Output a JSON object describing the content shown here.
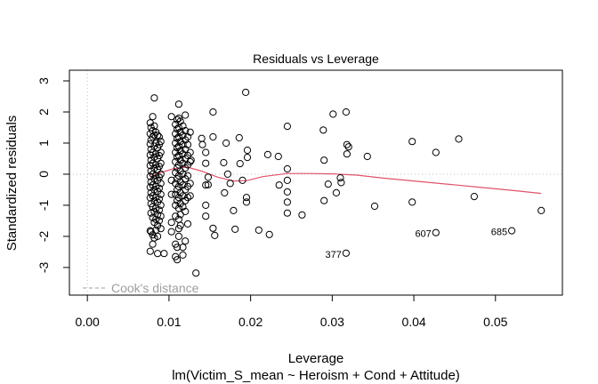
{
  "chart_data": {
    "type": "scatter",
    "title": "Residuals vs Leverage",
    "xlabel": "Leverage",
    "ylabel": "Standardized residuals",
    "subtitle": "lm(Victim_S_mean ~ Heroism + Cond + Attitude)",
    "xlim": [
      -0.0022,
      0.0582
    ],
    "ylim": [
      -3.889,
      3.343
    ],
    "x_ticks": [
      0.0,
      0.01,
      0.02,
      0.03,
      0.04,
      0.05
    ],
    "x_tick_labels": [
      "0.00",
      "0.01",
      "0.02",
      "0.03",
      "0.04",
      "0.05"
    ],
    "y_ticks": [
      3,
      2,
      1,
      0,
      -1,
      -2,
      -3
    ],
    "y_tick_labels": [
      "3",
      "2",
      "1",
      "0",
      "-1",
      "-2",
      "-3"
    ],
    "grid": false,
    "reference_lines": {
      "h": 0,
      "v": 0
    },
    "legend": {
      "text": "Cook's distance",
      "placement": "bottom-left"
    },
    "colors": {
      "smooth": "#DF536B",
      "points": "#000000",
      "reference": "#bebebe",
      "legend": "#9e9e9e"
    },
    "labeled_points": [
      {
        "label": "377",
        "x": 0.0317,
        "y": -2.54
      },
      {
        "label": "607",
        "x": 0.0427,
        "y": -1.88
      },
      {
        "label": "685",
        "x": 0.052,
        "y": -1.82
      }
    ],
    "smooth": {
      "x": [
        0.0077,
        0.009,
        0.0105,
        0.0122,
        0.014,
        0.016,
        0.018,
        0.0195,
        0.0215,
        0.0245,
        0.027,
        0.03,
        0.033,
        0.036,
        0.04,
        0.044,
        0.048,
        0.052,
        0.0556
      ],
      "y": [
        -0.08,
        0.05,
        0.17,
        0.23,
        0.1,
        -0.1,
        -0.22,
        -0.21,
        -0.08,
        0.02,
        0.02,
        0.01,
        -0.03,
        -0.12,
        -0.22,
        -0.32,
        -0.42,
        -0.52,
        -0.62
      ]
    },
    "points": [
      [
        0.0077,
        1.65
      ],
      [
        0.0077,
        1.3
      ],
      [
        0.0077,
        0.97
      ],
      [
        0.0077,
        0.62
      ],
      [
        0.0077,
        0.28
      ],
      [
        0.0077,
        -0.07
      ],
      [
        0.0077,
        -0.42
      ],
      [
        0.0077,
        -0.76
      ],
      [
        0.0077,
        -1.82
      ],
      [
        0.0077,
        -2.48
      ],
      [
        0.0078,
        1.5
      ],
      [
        0.0078,
        1.1
      ],
      [
        0.0078,
        0.8
      ],
      [
        0.0078,
        0.45
      ],
      [
        0.0078,
        0.1
      ],
      [
        0.0078,
        -0.25
      ],
      [
        0.0078,
        -0.6
      ],
      [
        0.0078,
        -0.95
      ],
      [
        0.0078,
        -1.25
      ],
      [
        0.0078,
        -1.85
      ],
      [
        0.008,
        1.85
      ],
      [
        0.008,
        1.4
      ],
      [
        0.008,
        1.2
      ],
      [
        0.008,
        0.7
      ],
      [
        0.008,
        0.35
      ],
      [
        0.008,
        0.0
      ],
      [
        0.008,
        -0.35
      ],
      [
        0.008,
        -0.7
      ],
      [
        0.008,
        -1.05
      ],
      [
        0.008,
        -1.4
      ],
      [
        0.008,
        -1.95
      ],
      [
        0.008,
        -2.25
      ],
      [
        0.0082,
        2.45
      ],
      [
        0.0082,
        1.55
      ],
      [
        0.0082,
        1.25
      ],
      [
        0.0082,
        0.9
      ],
      [
        0.0082,
        0.55
      ],
      [
        0.0082,
        0.2
      ],
      [
        0.0082,
        -0.15
      ],
      [
        0.0082,
        -0.5
      ],
      [
        0.0082,
        -0.85
      ],
      [
        0.0082,
        -1.2
      ],
      [
        0.0082,
        -1.55
      ],
      [
        0.0082,
        -2.05
      ],
      [
        0.0084,
        1.35
      ],
      [
        0.0084,
        1.0
      ],
      [
        0.0084,
        0.65
      ],
      [
        0.0084,
        0.3
      ],
      [
        0.0084,
        -0.05
      ],
      [
        0.0084,
        -0.4
      ],
      [
        0.0084,
        -0.75
      ],
      [
        0.0084,
        -1.1
      ],
      [
        0.0084,
        -1.45
      ],
      [
        0.0084,
        -1.8
      ],
      [
        0.0086,
        1.25
      ],
      [
        0.0086,
        0.85
      ],
      [
        0.0086,
        0.5
      ],
      [
        0.0086,
        0.15
      ],
      [
        0.0086,
        -0.2
      ],
      [
        0.0086,
        -0.55
      ],
      [
        0.0086,
        -0.9
      ],
      [
        0.0086,
        -1.3
      ],
      [
        0.0086,
        -1.65
      ],
      [
        0.0086,
        -2.0
      ],
      [
        0.0086,
        -2.55
      ],
      [
        0.0088,
        1.2
      ],
      [
        0.0088,
        0.95
      ],
      [
        0.0088,
        0.6
      ],
      [
        0.0088,
        0.25
      ],
      [
        0.0088,
        -0.1
      ],
      [
        0.0088,
        -0.45
      ],
      [
        0.0088,
        -0.8
      ],
      [
        0.0088,
        -1.15
      ],
      [
        0.0088,
        -1.5
      ],
      [
        0.009,
        1.05
      ],
      [
        0.009,
        0.7
      ],
      [
        0.009,
        0.35
      ],
      [
        0.009,
        0.0
      ],
      [
        0.009,
        -0.3
      ],
      [
        0.009,
        -0.65
      ],
      [
        0.009,
        -1.0
      ],
      [
        0.009,
        -1.35
      ],
      [
        0.009,
        -1.75
      ],
      [
        0.0094,
        -2.55
      ],
      [
        0.0103,
        1.85
      ],
      [
        0.0103,
        -1.55
      ],
      [
        0.0103,
        -1.85
      ],
      [
        0.0103,
        -0.65
      ],
      [
        0.0103,
        -0.2
      ],
      [
        0.0108,
        1.6
      ],
      [
        0.0108,
        1.3
      ],
      [
        0.0108,
        1.0
      ],
      [
        0.0108,
        0.7
      ],
      [
        0.0108,
        0.4
      ],
      [
        0.0108,
        0.05
      ],
      [
        0.0108,
        -0.3
      ],
      [
        0.0108,
        -0.65
      ],
      [
        0.0108,
        -1.0
      ],
      [
        0.0108,
        -1.35
      ],
      [
        0.0108,
        -2.25
      ],
      [
        0.0108,
        -2.65
      ],
      [
        0.011,
        1.75
      ],
      [
        0.011,
        1.45
      ],
      [
        0.011,
        1.15
      ],
      [
        0.011,
        0.85
      ],
      [
        0.011,
        0.55
      ],
      [
        0.011,
        0.2
      ],
      [
        0.011,
        -0.15
      ],
      [
        0.011,
        -0.5
      ],
      [
        0.011,
        -0.85
      ],
      [
        0.011,
        -2.35
      ],
      [
        0.011,
        -2.75
      ],
      [
        0.0112,
        2.25
      ],
      [
        0.0112,
        1.8
      ],
      [
        0.0112,
        1.5
      ],
      [
        0.0112,
        1.2
      ],
      [
        0.0112,
        0.9
      ],
      [
        0.0112,
        0.6
      ],
      [
        0.0112,
        0.3
      ],
      [
        0.0112,
        -0.05
      ],
      [
        0.0112,
        -0.4
      ],
      [
        0.0112,
        -0.75
      ],
      [
        0.0112,
        -1.1
      ],
      [
        0.0112,
        -1.45
      ],
      [
        0.0112,
        -1.75
      ],
      [
        0.0112,
        -2.0
      ],
      [
        0.0114,
        1.7
      ],
      [
        0.0114,
        1.35
      ],
      [
        0.0114,
        1.05
      ],
      [
        0.0114,
        0.75
      ],
      [
        0.0114,
        0.45
      ],
      [
        0.0114,
        0.1
      ],
      [
        0.0114,
        -0.25
      ],
      [
        0.0114,
        -0.6
      ],
      [
        0.0114,
        -0.95
      ],
      [
        0.0114,
        -1.3
      ],
      [
        0.0114,
        -1.65
      ],
      [
        0.0117,
        1.55
      ],
      [
        0.0117,
        1.25
      ],
      [
        0.0117,
        0.95
      ],
      [
        0.0117,
        0.65
      ],
      [
        0.0117,
        0.35
      ],
      [
        0.0117,
        0.0
      ],
      [
        0.0117,
        -0.35
      ],
      [
        0.0117,
        -0.7
      ],
      [
        0.0117,
        -1.05
      ],
      [
        0.0117,
        -2.35
      ],
      [
        0.0117,
        -2.6
      ],
      [
        0.012,
        1.9
      ],
      [
        0.012,
        1.4
      ],
      [
        0.012,
        1.1
      ],
      [
        0.012,
        0.8
      ],
      [
        0.012,
        0.5
      ],
      [
        0.012,
        0.2
      ],
      [
        0.012,
        -0.15
      ],
      [
        0.012,
        -0.5
      ],
      [
        0.012,
        -0.85
      ],
      [
        0.012,
        -1.2
      ],
      [
        0.012,
        -2.15
      ],
      [
        0.0123,
        1.2
      ],
      [
        0.0123,
        0.95
      ],
      [
        0.0123,
        0.6
      ],
      [
        0.0123,
        0.3
      ],
      [
        0.0123,
        -0.05
      ],
      [
        0.0123,
        -0.4
      ],
      [
        0.0123,
        -0.75
      ],
      [
        0.0123,
        -1.6
      ],
      [
        0.0126,
        1.35
      ],
      [
        0.0126,
        0.7
      ],
      [
        0.0126,
        0.4
      ],
      [
        0.0126,
        -0.3
      ],
      [
        0.0126,
        -0.7
      ],
      [
        0.0127,
        0.45
      ],
      [
        0.0133,
        -3.18
      ],
      [
        0.014,
        1.15
      ],
      [
        0.0141,
        0.95
      ],
      [
        0.0145,
        0.7
      ],
      [
        0.0145,
        0.35
      ],
      [
        0.0145,
        -0.35
      ],
      [
        0.0145,
        -1.0
      ],
      [
        0.0145,
        -1.35
      ],
      [
        0.0154,
        2.0
      ],
      [
        0.0154,
        1.2
      ],
      [
        0.0154,
        -1.74
      ],
      [
        0.0156,
        -1.97
      ],
      [
        0.0148,
        -0.1
      ],
      [
        0.0148,
        -0.34
      ],
      [
        0.0167,
        0.37
      ],
      [
        0.0168,
        -0.6
      ],
      [
        0.017,
        1.0
      ],
      [
        0.0172,
        0.0
      ],
      [
        0.0175,
        -0.3
      ],
      [
        0.0179,
        -1.17
      ],
      [
        0.0181,
        -1.77
      ],
      [
        0.0186,
        1.17
      ],
      [
        0.0187,
        0.34
      ],
      [
        0.019,
        -0.2
      ],
      [
        0.0195,
        -0.75
      ],
      [
        0.0195,
        -0.9
      ],
      [
        0.0194,
        2.63
      ],
      [
        0.0196,
        0.77
      ],
      [
        0.0196,
        0.54
      ],
      [
        0.021,
        -1.8
      ],
      [
        0.0221,
        0.63
      ],
      [
        0.0223,
        -1.94
      ],
      [
        0.0234,
        0.57
      ],
      [
        0.0235,
        -0.35
      ],
      [
        0.0245,
        1.54
      ],
      [
        0.0245,
        0.17
      ],
      [
        0.0245,
        -0.2
      ],
      [
        0.0245,
        -0.57
      ],
      [
        0.0245,
        -0.9
      ],
      [
        0.0245,
        -1.25
      ],
      [
        0.0263,
        -1.31
      ],
      [
        0.0289,
        1.42
      ],
      [
        0.029,
        0.45
      ],
      [
        0.029,
        -0.85
      ],
      [
        0.0295,
        -0.32
      ],
      [
        0.0301,
        1.93
      ],
      [
        0.0305,
        -0.6
      ],
      [
        0.031,
        -0.12
      ],
      [
        0.0311,
        -0.27
      ],
      [
        0.0317,
        2.0
      ],
      [
        0.0318,
        0.95
      ],
      [
        0.032,
        0.88
      ],
      [
        0.0318,
        0.65
      ],
      [
        0.0317,
        -2.54
      ],
      [
        0.0343,
        0.57
      ],
      [
        0.0352,
        -1.03
      ],
      [
        0.0398,
        1.05
      ],
      [
        0.0398,
        -0.9
      ],
      [
        0.0427,
        0.7
      ],
      [
        0.0427,
        -1.88
      ],
      [
        0.0455,
        1.13
      ],
      [
        0.0474,
        -0.72
      ],
      [
        0.052,
        -1.82
      ],
      [
        0.0556,
        -1.17
      ]
    ]
  }
}
